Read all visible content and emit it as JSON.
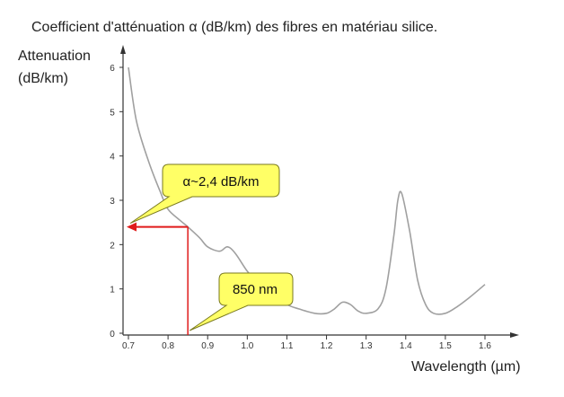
{
  "chart_data": {
    "type": "line",
    "title": "Coefficient d'atténuation α (dB/km) des fibres en matériau silice.",
    "ylabel_line1": "Attenuation",
    "ylabel_line2": "(dB/km)",
    "xlabel": "Wavelength (µm)",
    "xlim": [
      0.7,
      1.6
    ],
    "ylim": [
      0,
      6
    ],
    "x_ticks": [
      "0.7",
      "0.8",
      "0.9",
      "1.0",
      "1.1",
      "1.2",
      "1.3",
      "1.4",
      "1.5",
      "1.6"
    ],
    "y_ticks": [
      "0",
      "1",
      "2",
      "3",
      "4",
      "5",
      "6"
    ],
    "grid": false,
    "series": [
      {
        "x": [
          0.7,
          0.72,
          0.75,
          0.78,
          0.8,
          0.83,
          0.85,
          0.88,
          0.9,
          0.93,
          0.95,
          0.97,
          1.0,
          1.03,
          1.06,
          1.1,
          1.13,
          1.17,
          1.2,
          1.22,
          1.24,
          1.26,
          1.28,
          1.3,
          1.33,
          1.35,
          1.37,
          1.38,
          1.39,
          1.41,
          1.43,
          1.45,
          1.47,
          1.5,
          1.53,
          1.56,
          1.6
        ],
        "y": [
          6.0,
          4.8,
          3.9,
          3.2,
          2.8,
          2.55,
          2.4,
          2.15,
          1.95,
          1.85,
          1.95,
          1.8,
          1.4,
          1.1,
          0.9,
          0.65,
          0.55,
          0.45,
          0.45,
          0.55,
          0.7,
          0.65,
          0.5,
          0.45,
          0.55,
          1.0,
          2.2,
          3.0,
          3.15,
          2.3,
          1.2,
          0.65,
          0.45,
          0.45,
          0.6,
          0.8,
          1.1
        ]
      }
    ],
    "annotations": {
      "attenuation_label": "α~2,4 dB/km",
      "attenuation_value": 2.4,
      "wavelength_label": "850 nm",
      "wavelength_value": 0.85
    },
    "colors": {
      "curve": "#a0a0a0",
      "marker": "#e01b1b",
      "callout_fill": "#ffff66",
      "callout_stroke": "#7a7a20"
    }
  }
}
